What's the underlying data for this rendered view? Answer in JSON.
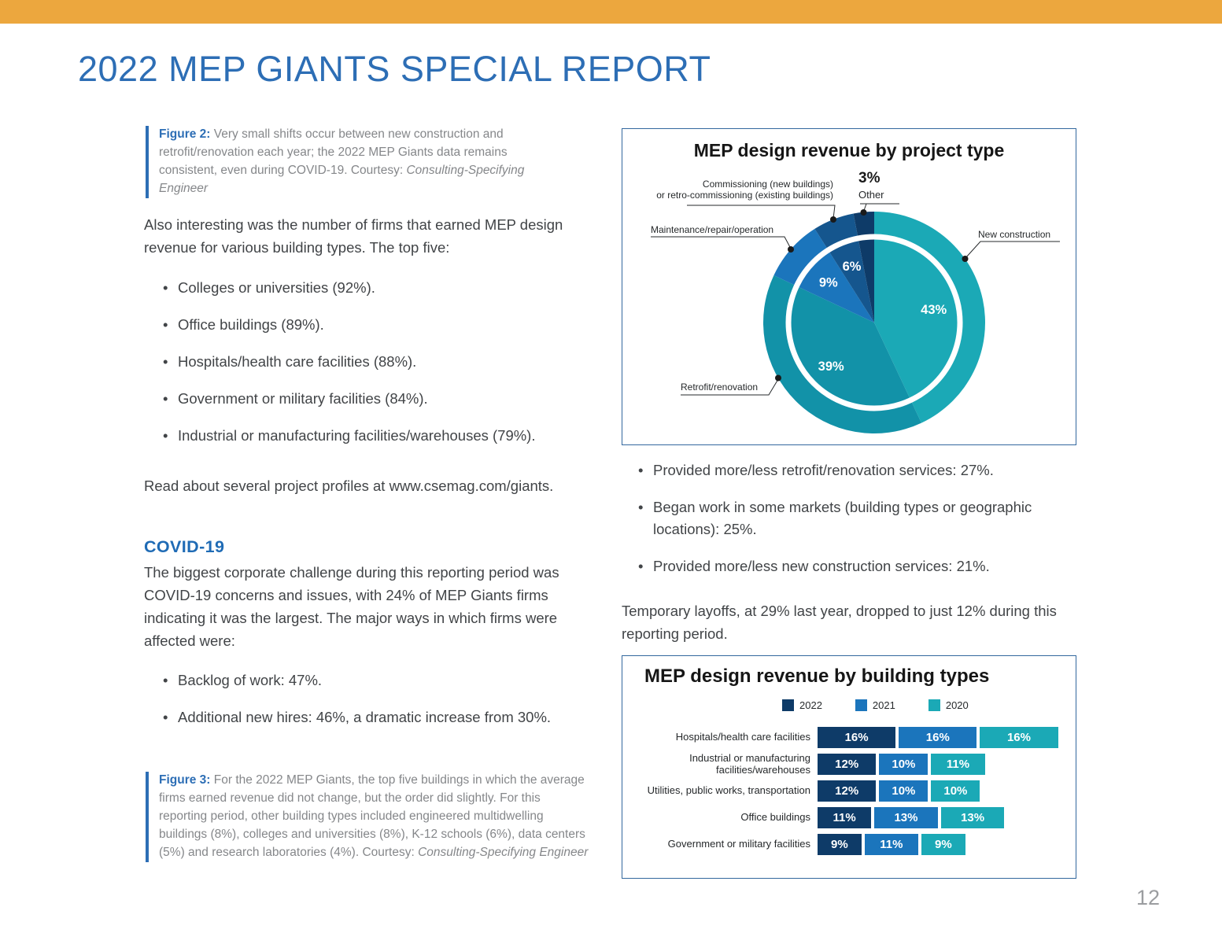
{
  "page": {
    "number": "12"
  },
  "header": {
    "title": "2022 MEP GIANTS SPECIAL REPORT"
  },
  "figure2": {
    "label": "Figure 2:",
    "body": " Very small shifts occur between new construction and retrofit/renovation each year; the 2022 MEP Giants data remains consistent, even during COVID-19. Courtesy: ",
    "courtesy": "Consulting-Specifying Engineer"
  },
  "left": {
    "intro": "Also interesting was the number of firms that earned MEP design revenue for various building types. The top five:",
    "top_five": [
      "Colleges or universities (92%).",
      "Office buildings (89%).",
      "Hospitals/health care facilities (88%).",
      "Government or military facilities (84%).",
      "Industrial or manufacturing facilities/warehouses (79%)."
    ],
    "read_more": "Read about several project profiles at www.csemag.com/giants.",
    "covid_heading": "COVID-19",
    "covid_body": "The biggest corporate challenge during this reporting period was COVID-19 concerns and issues, with 24% of MEP Giants firms indicating it was the largest. The major ways in which firms were affected were:",
    "covid_bullets": [
      "Backlog of work: 47%.",
      "Additional new hires: 46%, a dramatic increase from 30%."
    ]
  },
  "figure3": {
    "label": "Figure 3:",
    "body": " For the 2022 MEP Giants, the top five buildings in which the average firms earned revenue did not change, but the order did slightly. For this reporting period, other building types included engineered multidwelling buildings (8%), colleges and universities (8%), K-12 schools (6%), data centers (5%) and research laboratories (4%). Courtesy: ",
    "courtesy": "Consulting-Specifying Engineer"
  },
  "right": {
    "bullets": [
      "Provided more/less retrofit/renovation services: 27%.",
      "Began work in some markets (building types or geographic locations): 25%.",
      "Provided more/less new construction services: 21%."
    ],
    "layoffs": "Temporary layoffs, at 29% last year, dropped to just 12% during this reporting period."
  },
  "chart_data": [
    {
      "type": "pie",
      "title": "MEP design revenue by project type",
      "slices": [
        {
          "label": "New construction",
          "value": 43,
          "pct_label": "43%",
          "color": "#1BA9B6"
        },
        {
          "label": "Retrofit/renovation",
          "value": 39,
          "pct_label": "39%",
          "color": "#1292A8"
        },
        {
          "label": "Maintenance/repair/operation",
          "value": 9,
          "pct_label": "9%",
          "color": "#1B75BC"
        },
        {
          "label": "Commissioning (new buildings) or retro-commissioning (existing buildings)",
          "value": 6,
          "pct_label": "6%",
          "color": "#15568E"
        },
        {
          "label": "Other",
          "value": 3,
          "pct_label": "3%",
          "color": "#0E3B68"
        }
      ],
      "callouts": {
        "commissioning_line1": "Commissioning (new buildings)",
        "commissioning_line2": "or retro-commissioning (existing buildings)",
        "maintenance": "Maintenance/repair/operation",
        "new_construction": "New construction",
        "retrofit": "Retrofit/renovation",
        "other_pct": "3%",
        "other_label": "Other"
      }
    },
    {
      "type": "bar",
      "title": "MEP design revenue by building types",
      "legend": [
        {
          "label": "2022",
          "color": "#0E3B68"
        },
        {
          "label": "2021",
          "color": "#1B75BC"
        },
        {
          "label": "2020",
          "color": "#1BA9B6"
        }
      ],
      "categories": [
        "Hospitals/health care facilities",
        "Industrial or manufacturing facilities/warehouses",
        "Utilities, public works, transportation",
        "Office buildings",
        "Government or military facilities"
      ],
      "series": [
        {
          "name": "2022",
          "values": [
            16,
            12,
            12,
            11,
            9
          ]
        },
        {
          "name": "2021",
          "values": [
            16,
            10,
            10,
            13,
            11
          ]
        },
        {
          "name": "2020",
          "values": [
            16,
            11,
            10,
            13,
            9
          ]
        }
      ]
    }
  ]
}
